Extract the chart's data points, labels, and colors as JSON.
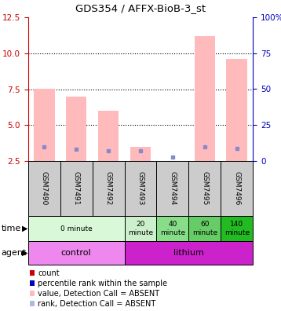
{
  "title": "GDS354 / AFFX-BioB-3_st",
  "samples": [
    "GSM7490",
    "GSM7491",
    "GSM7492",
    "GSM7493",
    "GSM7494",
    "GSM7495",
    "GSM7496"
  ],
  "pink_bar_heights": [
    7.5,
    7.0,
    6.0,
    3.5,
    0.0,
    11.2,
    9.6
  ],
  "blue_square_y": [
    3.5,
    3.3,
    3.2,
    3.2,
    2.8,
    3.5,
    3.4
  ],
  "ylim_left": [
    2.5,
    12.5
  ],
  "ylim_right": [
    0,
    100
  ],
  "yticks_left": [
    2.5,
    5.0,
    7.5,
    10.0,
    12.5
  ],
  "yticks_right": [
    0,
    25,
    50,
    75,
    100
  ],
  "left_color": "#cc0000",
  "right_color": "#0000bb",
  "sample_bg": "#cccccc",
  "pink_color": "#ffbbbb",
  "blue_color": "#8888cc",
  "time_data": [
    {
      "label": "0 minute",
      "cols": [
        0,
        1,
        2
      ],
      "color": "#d8f8d8"
    },
    {
      "label": "20\nminute",
      "cols": [
        3
      ],
      "color": "#ccf0cc"
    },
    {
      "label": "40\nminute",
      "cols": [
        4
      ],
      "color": "#88dd88"
    },
    {
      "label": "60\nminute",
      "cols": [
        5
      ],
      "color": "#66cc66"
    },
    {
      "label": "140\nminute",
      "cols": [
        6
      ],
      "color": "#22bb22"
    }
  ],
  "agent_data": [
    {
      "label": "control",
      "cols": [
        0,
        1,
        2
      ],
      "color": "#ee88ee"
    },
    {
      "label": "lithium",
      "cols": [
        3,
        4,
        5,
        6
      ],
      "color": "#cc22cc"
    }
  ],
  "legend_colors": [
    "#cc0000",
    "#0000bb",
    "#ffbbbb",
    "#aabbdd"
  ],
  "legend_labels": [
    "count",
    "percentile rank within the sample",
    "value, Detection Call = ABSENT",
    "rank, Detection Call = ABSENT"
  ]
}
